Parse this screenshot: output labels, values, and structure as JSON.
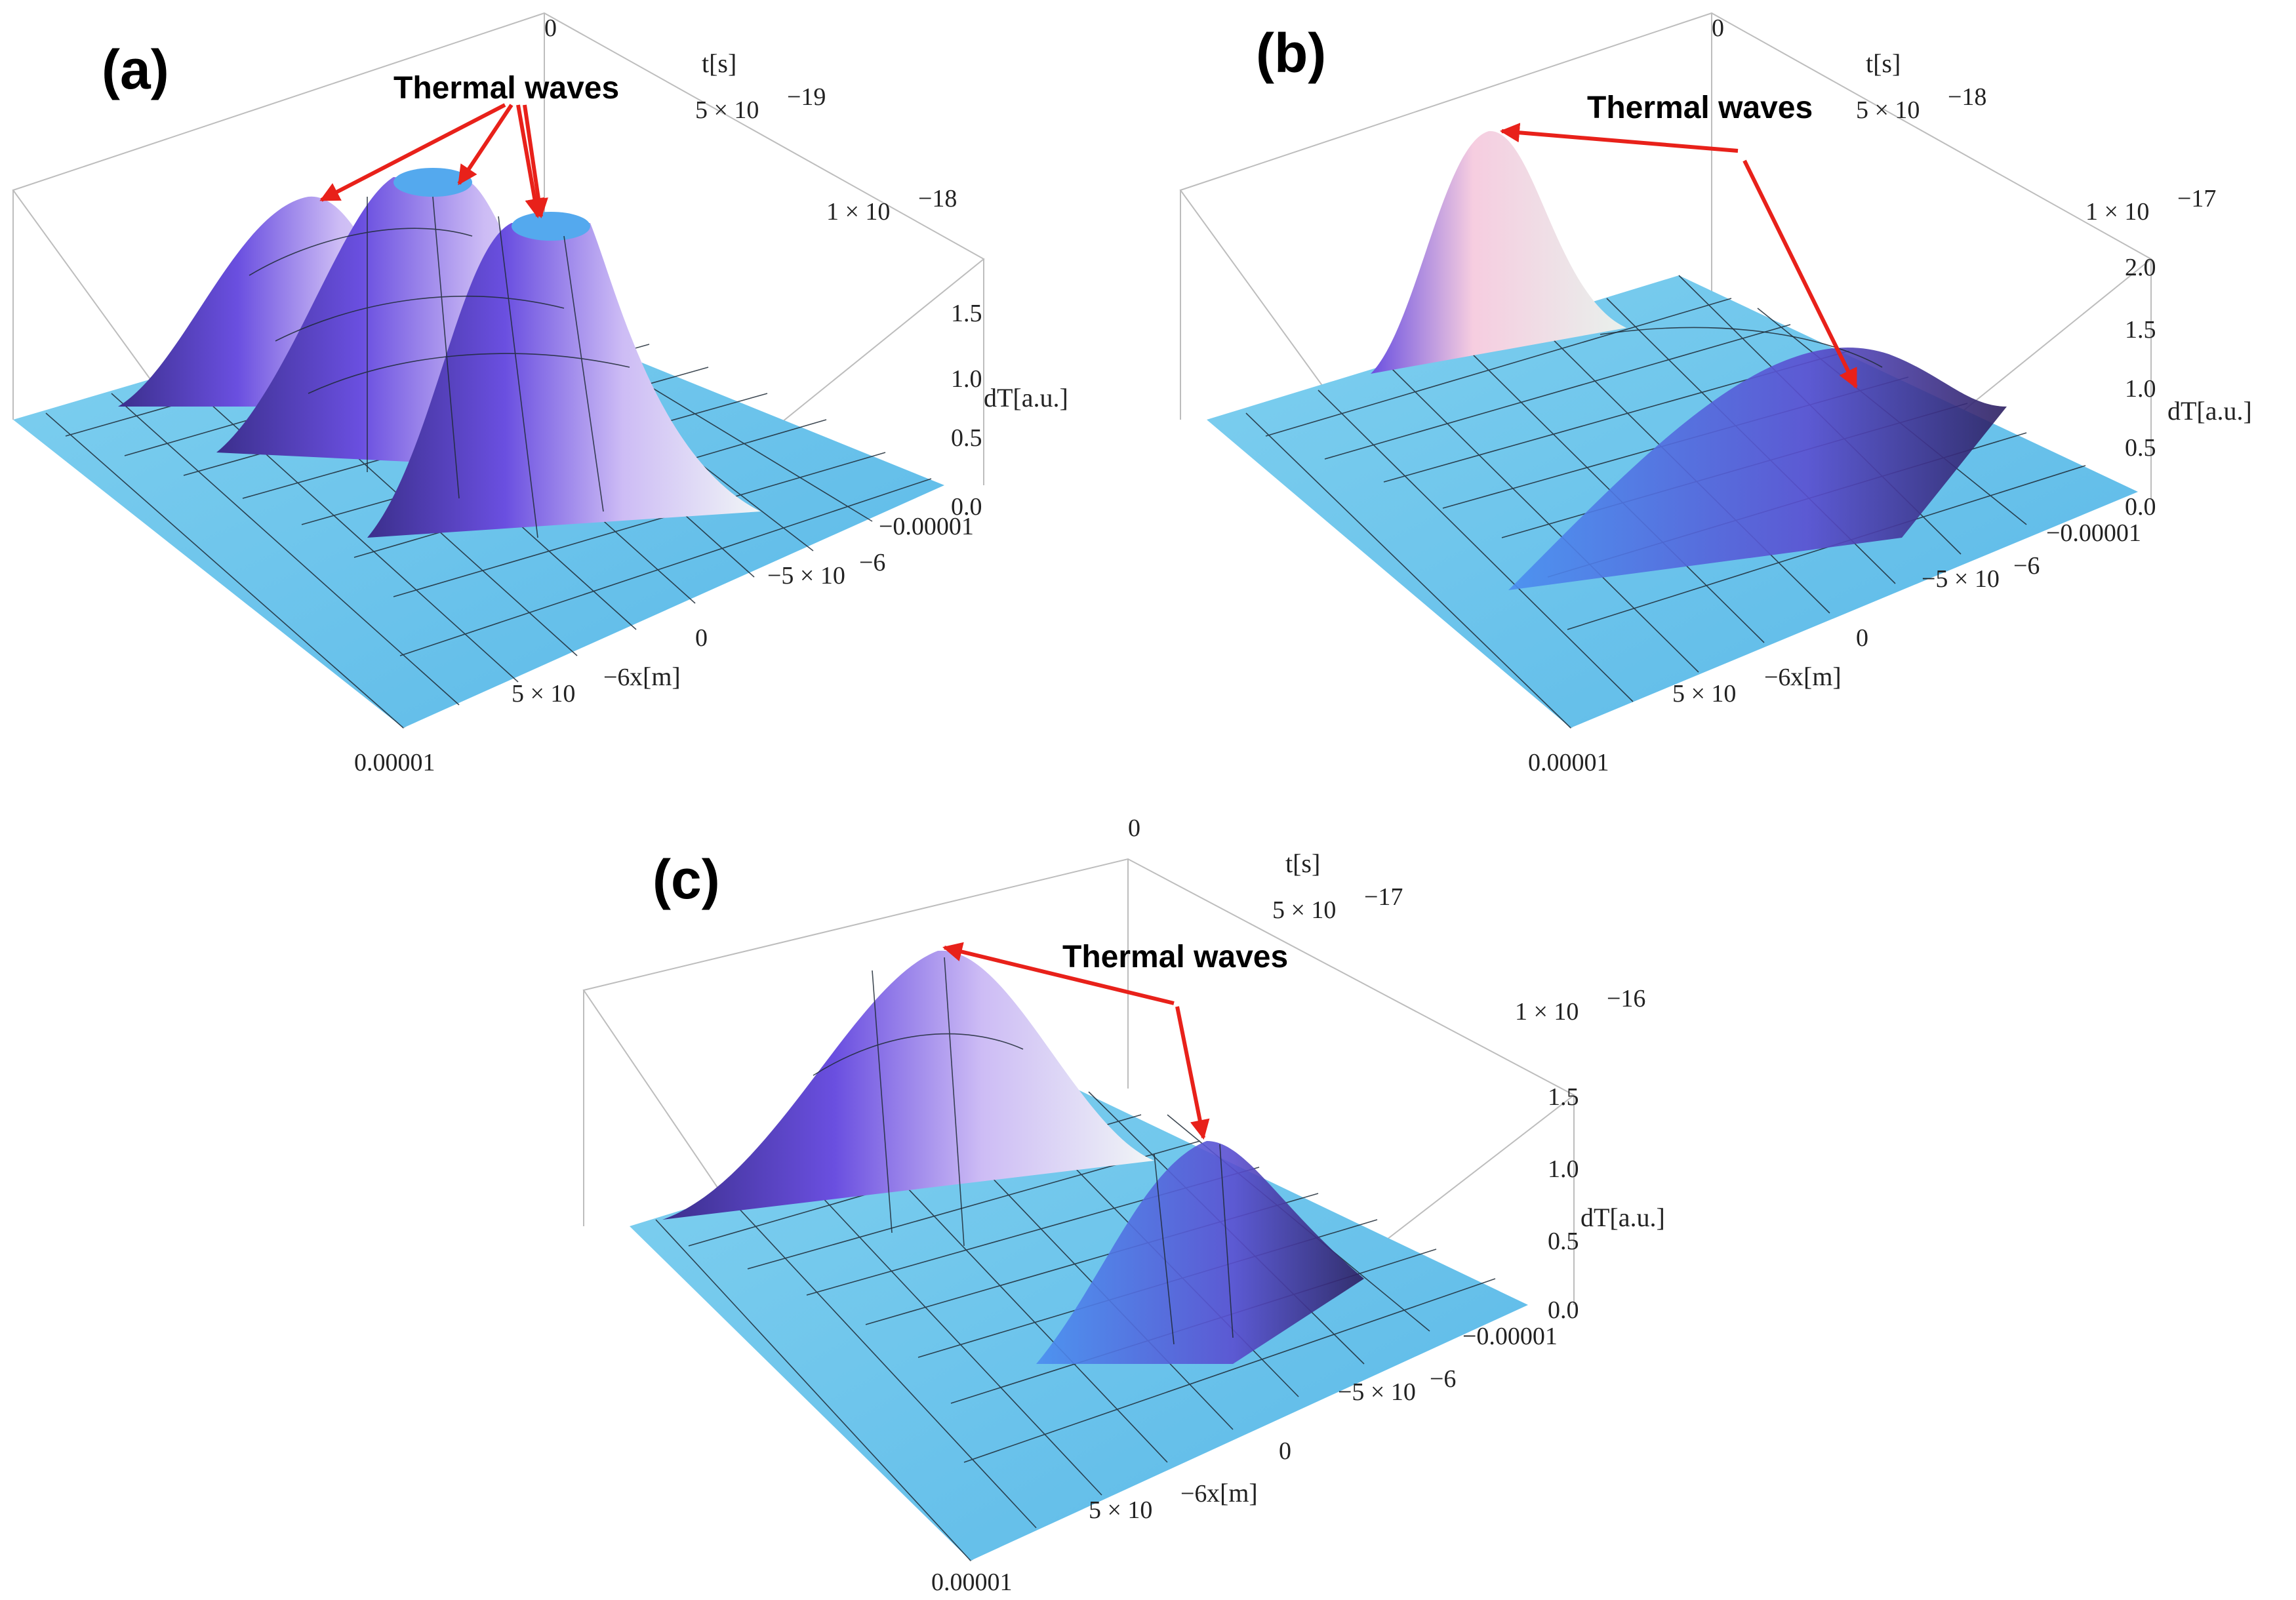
{
  "chart_data": [
    {
      "type": "surface3d",
      "panel": "(a)",
      "annotation": "Thermal waves",
      "t_axis": {
        "label": "t[s]",
        "ticks": [
          "0",
          "5 × 10",
          "−19",
          "1 × 10",
          "−18"
        ]
      },
      "x_axis": {
        "label": "x[m]",
        "ticks": [
          "−0.00001",
          "−5 × 10",
          "−6",
          "0",
          "5 × 10",
          "−6",
          "0.00001"
        ]
      },
      "z_axis": {
        "label": "dT[a.u.]",
        "ticks": [
          "0.0",
          "0.5",
          "1.0",
          "1.5"
        ]
      },
      "peaks": [
        {
          "x": -5e-06,
          "t_frac": 0.95,
          "height": 1.7
        },
        {
          "x": 0.0,
          "t_frac": 0.7,
          "height": 2.0
        },
        {
          "x": 5e-06,
          "t_frac": 0.45,
          "height": 1.7
        }
      ]
    },
    {
      "type": "surface3d",
      "panel": "(b)",
      "annotation": "Thermal waves",
      "t_axis": {
        "label": "t[s]",
        "ticks": [
          "0",
          "5 × 10",
          "−18",
          "1 × 10",
          "−17"
        ]
      },
      "x_axis": {
        "label": "x[m]",
        "ticks": [
          "−0.00001",
          "−5 × 10",
          "−6",
          "0",
          "5 × 10",
          "−6",
          "0.00001"
        ]
      },
      "z_axis": {
        "label": "dT[a.u.]",
        "ticks": [
          "0.0",
          "0.5",
          "1.0",
          "1.5",
          "2.0"
        ]
      },
      "peaks": [
        {
          "x": -2e-06,
          "t_frac": 0.85,
          "height": 2.1
        },
        {
          "x": 1e-05,
          "t_frac": 0.2,
          "height": 0.9
        }
      ]
    },
    {
      "type": "surface3d",
      "panel": "(c)",
      "annotation": "Thermal waves",
      "t_axis": {
        "label": "t[s]",
        "ticks": [
          "0",
          "5 × 10",
          "−17",
          "1 × 10",
          "−16"
        ]
      },
      "x_axis": {
        "label": "x[m]",
        "ticks": [
          "−0.00001",
          "−5 × 10",
          "−6",
          "0",
          "5 × 10",
          "−6",
          "0.00001"
        ]
      },
      "z_axis": {
        "label": "dT[a.u.]",
        "ticks": [
          "0.0",
          "0.5",
          "1.0",
          "1.5"
        ]
      },
      "peaks": [
        {
          "x": -2e-06,
          "t_frac": 0.75,
          "height": 1.9
        },
        {
          "x": 5e-06,
          "t_frac": 0.25,
          "height": 1.1
        }
      ]
    }
  ]
}
